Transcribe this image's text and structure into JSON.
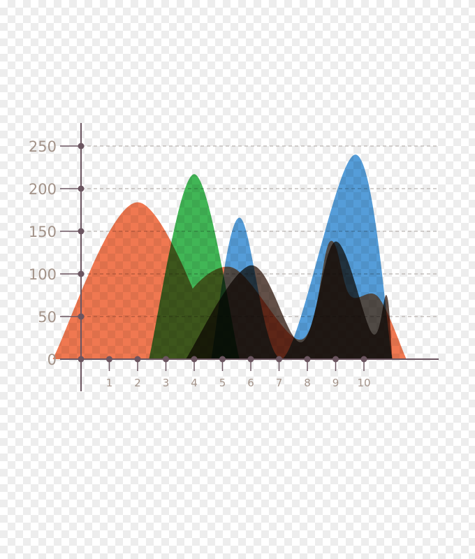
{
  "chart_data": {
    "type": "area",
    "x": [
      1,
      2,
      3,
      4,
      5,
      6,
      7,
      8,
      9,
      10
    ],
    "ylim": [
      0,
      250
    ],
    "yticks": [
      0,
      50,
      100,
      150,
      200,
      250
    ],
    "grid": true,
    "series": [
      {
        "color": "#f0744b",
        "points": [
          [
            -1,
            0
          ],
          [
            2,
            184
          ],
          [
            4.9,
            0
          ],
          [
            3.5,
            55
          ],
          [
            5.3,
            108
          ],
          [
            7.8,
            23
          ],
          [
            8.8,
            138
          ],
          [
            9.5,
            75
          ],
          [
            10.5,
            73
          ],
          [
            11.5,
            0
          ]
        ]
      },
      {
        "color": "#3bb451",
        "points": [
          [
            2.4,
            0
          ],
          [
            4,
            217
          ],
          [
            5.6,
            0
          ]
        ]
      },
      {
        "color": "#4f9ad8",
        "points": [
          [
            4.6,
            0
          ],
          [
            5.6,
            166
          ],
          [
            7.1,
            0
          ],
          [
            9.7,
            240
          ],
          [
            11.0,
            0
          ]
        ]
      },
      {
        "color": "#5e4a42",
        "points": [
          [
            3.7,
            0
          ],
          [
            6,
            110
          ],
          [
            7.8,
            20
          ],
          [
            9,
            138
          ],
          [
            10.3,
            30
          ],
          [
            10.8,
            75
          ],
          [
            11.0,
            0
          ]
        ]
      }
    ]
  }
}
